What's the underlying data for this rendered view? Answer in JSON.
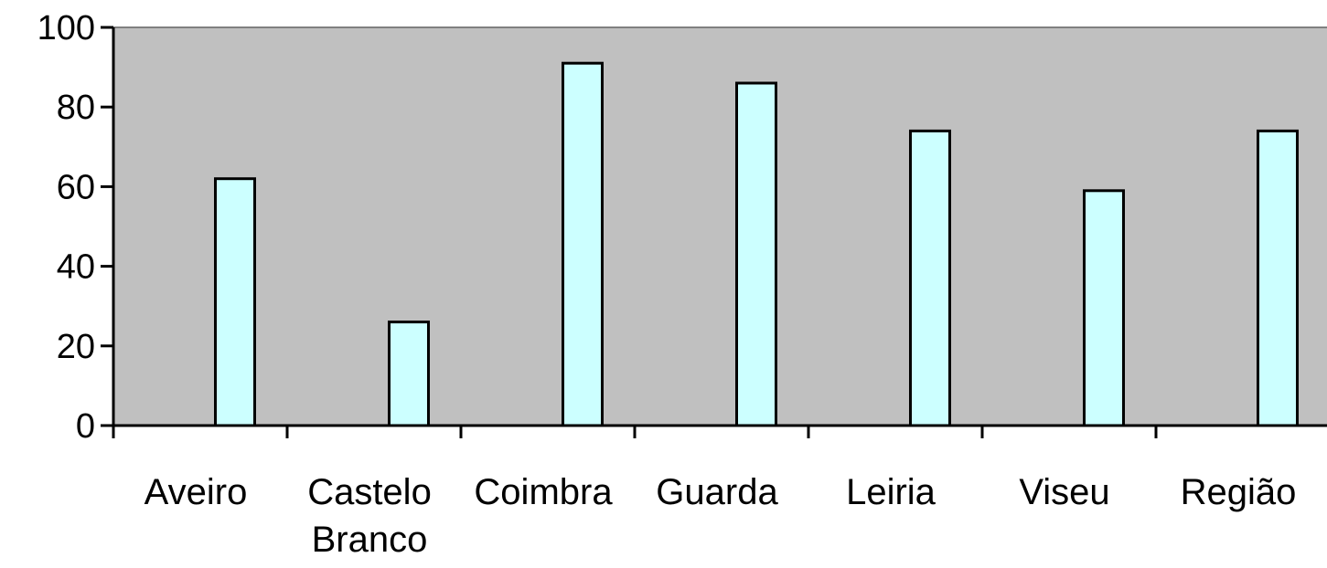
{
  "colors": {
    "plot_background": "#c0c0c0",
    "bar_fill": "#ccffff",
    "bar_stroke": "#000000",
    "axis": "#000000",
    "plot_border": "#808080"
  },
  "chart_data": {
    "type": "bar",
    "categories": [
      [
        "Aveiro"
      ],
      [
        "Castelo",
        "Branco"
      ],
      [
        "Coimbra"
      ],
      [
        "Guarda"
      ],
      [
        "Leiria"
      ],
      [
        "Viseu"
      ],
      [
        "Região"
      ]
    ],
    "values": [
      62,
      26,
      91,
      86,
      74,
      59,
      74
    ],
    "title": "",
    "xlabel": "",
    "ylabel": "",
    "ylim": [
      0,
      100
    ],
    "yticks": [
      "0",
      "20",
      "40",
      "60",
      "80",
      "100"
    ],
    "grid": false,
    "legend": "none"
  }
}
